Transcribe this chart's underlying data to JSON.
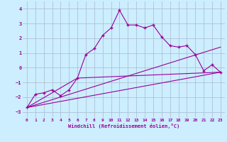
{
  "xlabel": "Windchill (Refroidissement éolien,°C)",
  "background_color": "#cceeff",
  "grid_color": "#aab8cc",
  "line_color": "#990099",
  "xlim": [
    -0.5,
    23.5
  ],
  "ylim": [
    -3.4,
    4.5
  ],
  "yticks": [
    -3,
    -2,
    -1,
    0,
    1,
    2,
    3,
    4
  ],
  "xticks": [
    0,
    1,
    2,
    3,
    4,
    5,
    6,
    7,
    8,
    9,
    10,
    11,
    12,
    13,
    14,
    15,
    16,
    17,
    18,
    19,
    20,
    21,
    22,
    23
  ],
  "series1_x": [
    0,
    1,
    2,
    3,
    4,
    5,
    6,
    7,
    8,
    9,
    10,
    11,
    12,
    13,
    14,
    15,
    16,
    17,
    18,
    19,
    20,
    21,
    22,
    23
  ],
  "series1_y": [
    -2.7,
    -1.8,
    -1.7,
    -1.5,
    -1.9,
    -1.5,
    -0.7,
    0.9,
    1.3,
    2.2,
    2.7,
    3.9,
    2.9,
    2.9,
    2.7,
    2.9,
    2.1,
    1.5,
    1.4,
    1.5,
    0.9,
    -0.2,
    0.2,
    -0.3
  ],
  "series2_x": [
    0,
    23
  ],
  "series2_y": [
    -2.7,
    -0.3
  ],
  "series3_x": [
    0,
    6,
    23
  ],
  "series3_y": [
    -2.7,
    -0.7,
    -0.3
  ],
  "series4_x": [
    0,
    23
  ],
  "series4_y": [
    -2.7,
    1.4
  ]
}
